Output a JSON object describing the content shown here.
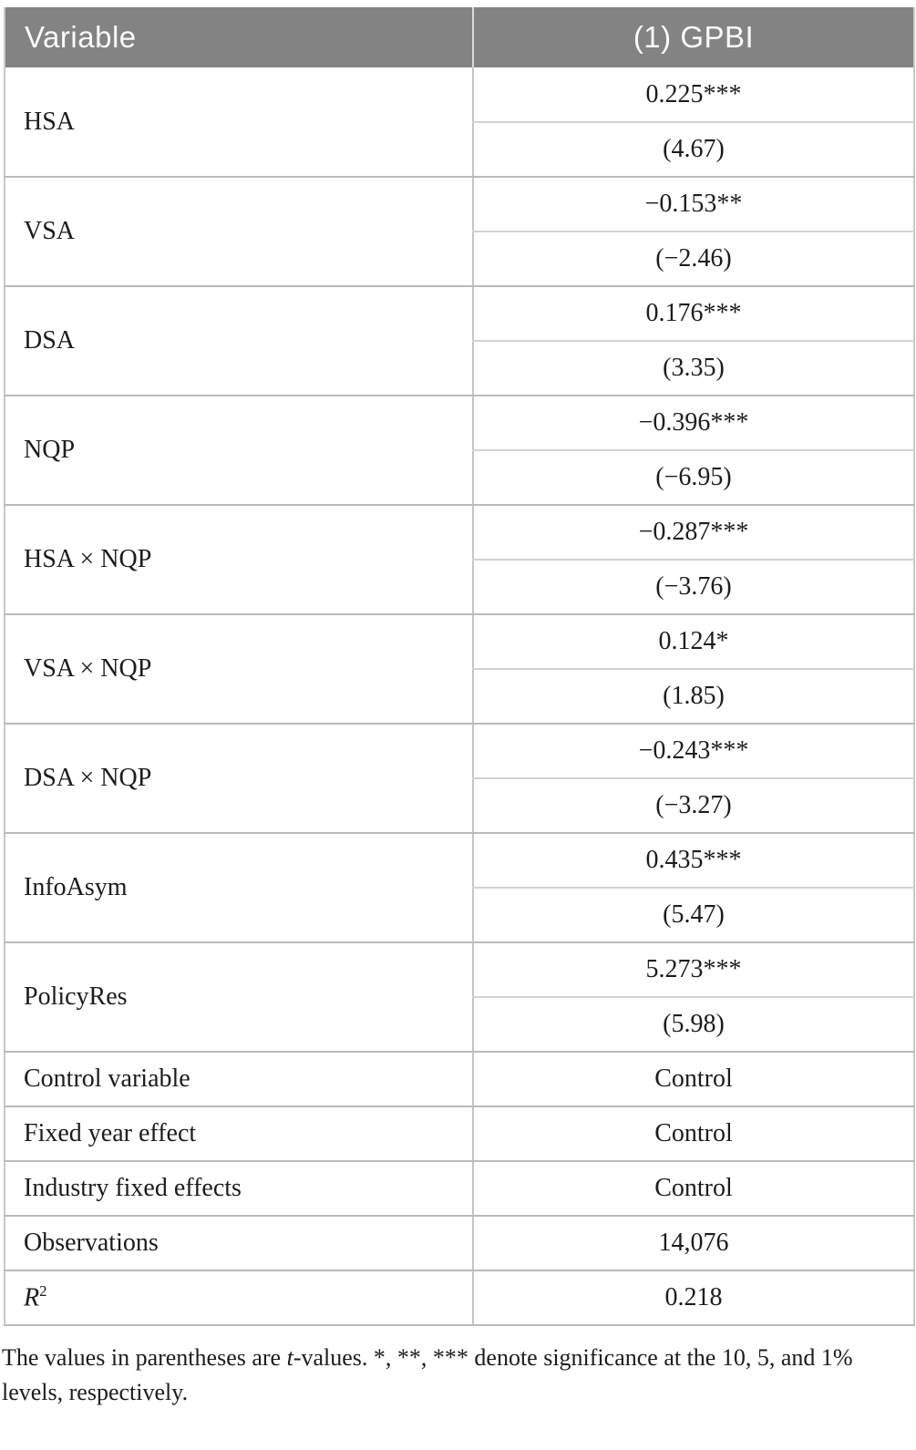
{
  "table": {
    "header": {
      "variable_col": "Variable",
      "model_col": "(1) GPBI"
    },
    "coef_rows": [
      {
        "label": "HSA",
        "coef": "0.225***",
        "tval": "(4.67)"
      },
      {
        "label": "VSA",
        "coef": "−0.153**",
        "tval": "(−2.46)"
      },
      {
        "label": "DSA",
        "coef": "0.176***",
        "tval": "(3.35)"
      },
      {
        "label": "NQP",
        "coef": "−0.396***",
        "tval": "(−6.95)"
      },
      {
        "label": "HSA × NQP",
        "coef": "−0.287***",
        "tval": "(−3.76)"
      },
      {
        "label": "VSA × NQP",
        "coef": "0.124*",
        "tval": "(1.85)"
      },
      {
        "label": "DSA × NQP",
        "coef": "−0.243***",
        "tval": "(−3.27)"
      },
      {
        "label": "InfoAsym",
        "coef": "0.435***",
        "tval": "(5.47)"
      },
      {
        "label": "PolicyRes",
        "coef": "5.273***",
        "tval": "(5.98)"
      }
    ],
    "summary_rows": [
      {
        "label": "Control variable",
        "value": "Control"
      },
      {
        "label": "Fixed year effect",
        "value": "Control"
      },
      {
        "label": "Industry fixed effects",
        "value": "Control"
      },
      {
        "label": "Observations",
        "value": "14,076"
      },
      {
        "label_base": "R",
        "label_sup": "2",
        "value": "0.218"
      }
    ]
  },
  "note": {
    "part1": "The values in parentheses are ",
    "italic": "t",
    "part2": "-values. *, **, *** denote significance at the 10, 5, and 1% levels, respectively."
  },
  "colors": {
    "header_bg": "#838383",
    "header_text": "#fafafa",
    "border": "#bababa",
    "body_text": "#1c1c1c"
  }
}
